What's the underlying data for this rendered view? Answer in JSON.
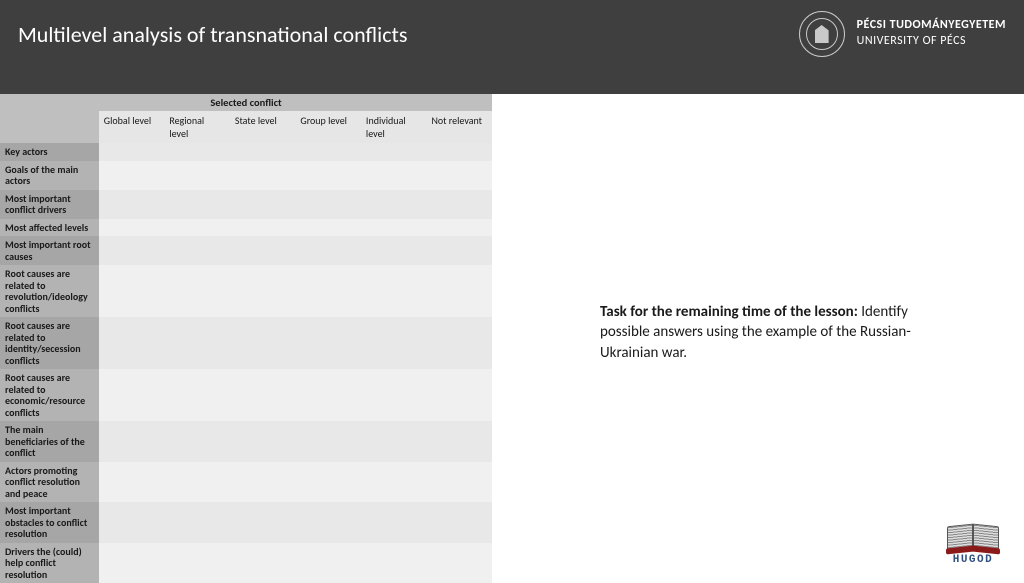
{
  "header": {
    "title": "Multilevel analysis of transnational conflicts",
    "uni_line1": "PÉCSI TUDOMÁNYEGYETEM",
    "uni_line2": "UNIVERSITY OF PÉCS"
  },
  "table": {
    "caption": "Selected conflict",
    "columns": [
      "Global level",
      "Regional level",
      "State level",
      "Group level",
      "Individual level",
      "Not relevant"
    ],
    "rows": [
      "Key actors",
      "Goals of the main actors",
      "Most important conflict drivers",
      "Most affected levels",
      "Most important root causes",
      "Root causes are related to revolution/ideology conflicts",
      "Root causes are related to identity/secession conflicts",
      "Root causes are related to economic/resource conflicts",
      "The main beneficiaries of the conflict",
      "Actors promoting conflict resolution and peace",
      "Most important obstacles to conflict resolution",
      "Drivers the (could) help conflict resolution"
    ],
    "header_bg": "#bfbfbf",
    "rowhead_bg": "#a6a6a6",
    "cell_bg_odd": "#e8e8e8",
    "cell_bg_even": "#f0f0f0"
  },
  "task": {
    "title": "Task for the remaining time of the lesson:",
    "body": "Identify possible answers using the example of the Russian-Ukrainian war."
  },
  "logo": {
    "text": "HUGOD"
  }
}
